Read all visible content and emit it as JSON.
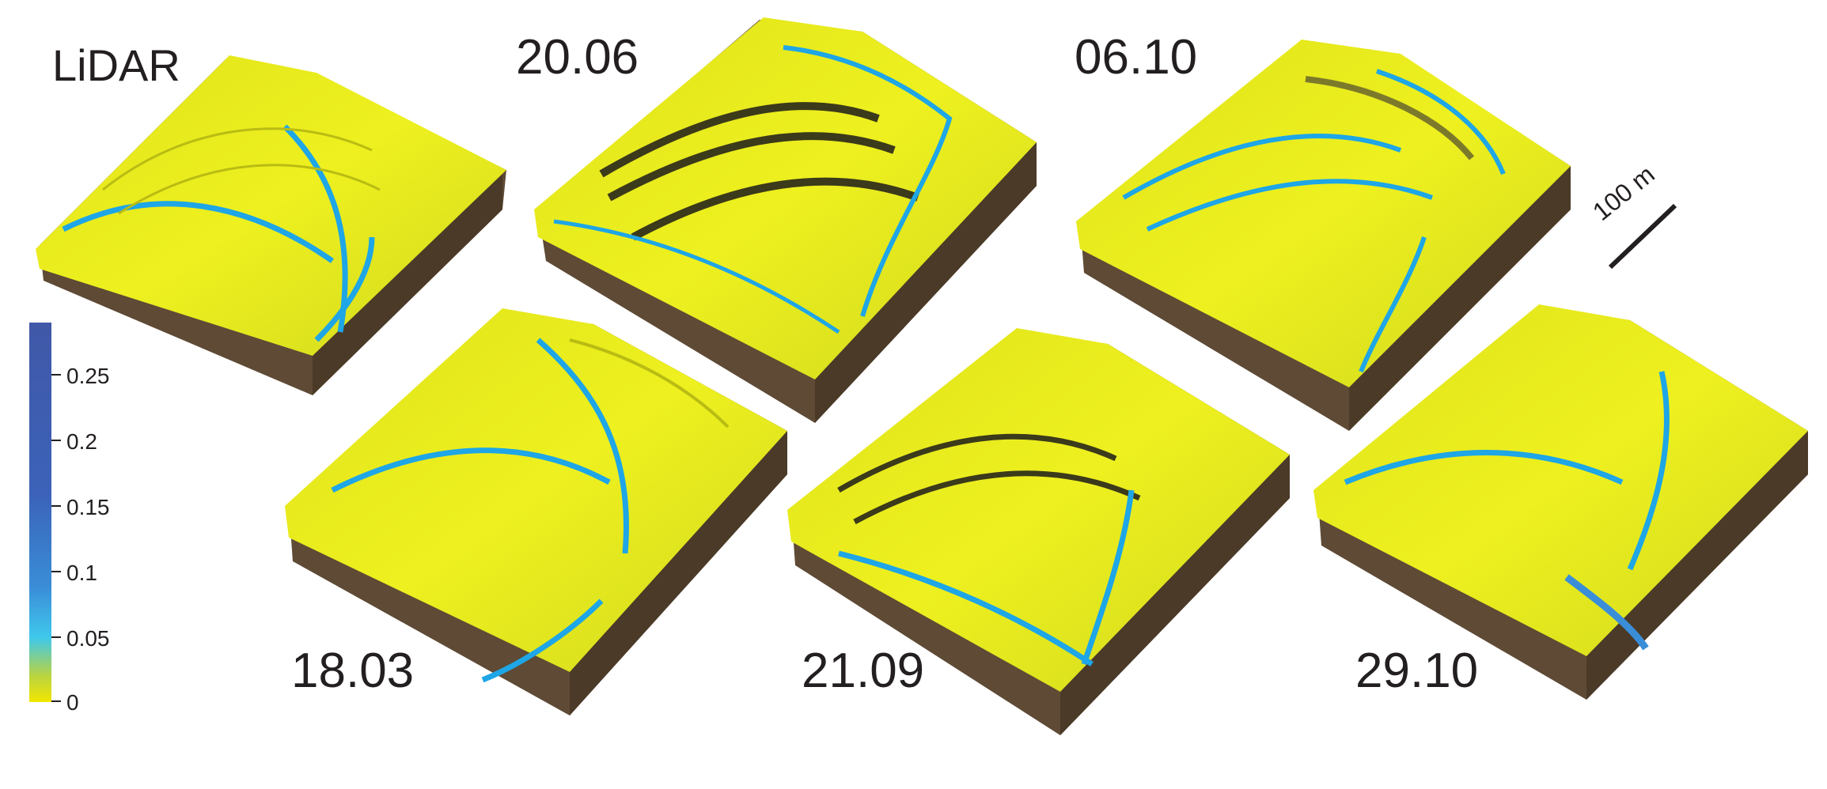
{
  "panels": [
    {
      "id": "lidar",
      "label": "LiDAR"
    },
    {
      "id": "d2006",
      "label": "20.06"
    },
    {
      "id": "d0610",
      "label": "06.10"
    },
    {
      "id": "d1803",
      "label": "18.03"
    },
    {
      "id": "d2109",
      "label": "21.09"
    },
    {
      "id": "d2910",
      "label": "29.10"
    }
  ],
  "colorbar": {
    "ticks": [
      "0.25",
      "0.2",
      "0.15",
      "0.1",
      "0.05",
      "0"
    ],
    "colors": {
      "low": "#f2e600",
      "mid_low": "#3fc8ec",
      "mid": "#3a8ed8",
      "high": "#4158a8"
    }
  },
  "scale_bar": {
    "label": "100 m"
  },
  "colors": {
    "terrain": "#e8ea1c",
    "channel": "#1ea6e6",
    "soil_side": "#5e4a35",
    "soil_front": "#4b3a28"
  }
}
